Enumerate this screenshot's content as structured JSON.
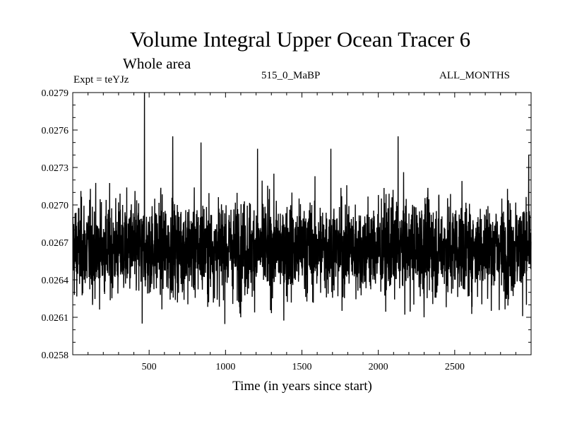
{
  "chart_data": {
    "type": "line",
    "title": "Volume Integral Upper Ocean Tracer 6",
    "subtitle": "Whole area",
    "experiment": "Expt = teYJz",
    "run_label": "515_0_MaBP",
    "period": "ALL_MONTHS",
    "xlabel": "Time (in years since start)",
    "ylabel": "",
    "xlim": [
      0,
      3000
    ],
    "ylim": [
      0.0258,
      0.0279
    ],
    "xticks": [
      500,
      1000,
      1500,
      2000,
      2500
    ],
    "xtick_labels": [
      "500",
      "1000",
      "1500",
      "2000",
      "2500"
    ],
    "yticks": [
      0.0258,
      0.0261,
      0.0264,
      0.0267,
      0.027,
      0.0273,
      0.0276,
      0.0279
    ],
    "ytick_labels": [
      "0.0258",
      "0.0261",
      "0.0264",
      "0.0267",
      "0.0270",
      "0.0273",
      "0.0276",
      "0.0279"
    ],
    "series": [
      {
        "name": "Volume Integral Upper Ocean Tracer 6",
        "mean": 0.02665,
        "typical_range": [
          0.0263,
          0.0271
        ],
        "n_points": 3000,
        "notable_points": [
          {
            "x": 470,
            "y": 0.0279
          },
          {
            "x": 455,
            "y": 0.02605
          },
          {
            "x": 655,
            "y": 0.02755
          },
          {
            "x": 840,
            "y": 0.0275
          },
          {
            "x": 1210,
            "y": 0.02745
          },
          {
            "x": 1100,
            "y": 0.0261
          },
          {
            "x": 1690,
            "y": 0.02745
          },
          {
            "x": 2130,
            "y": 0.02755
          },
          {
            "x": 2300,
            "y": 0.0261
          },
          {
            "x": 2970,
            "y": 0.0262
          },
          {
            "x": 2985,
            "y": 0.0274
          }
        ]
      }
    ]
  }
}
